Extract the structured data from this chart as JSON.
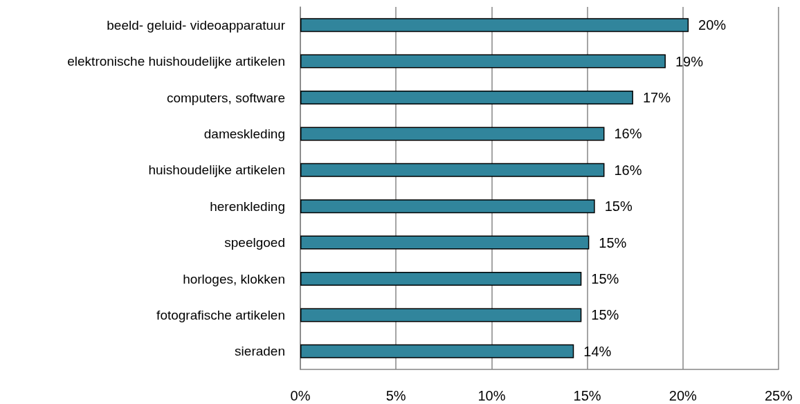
{
  "chart_data": {
    "type": "bar",
    "orientation": "horizontal",
    "categories": [
      "beeld- geluid- videoapparatuur",
      "elektronische huishoudelijke artikelen",
      "computers, software",
      "dameskleding",
      "huishoudelijke artikelen",
      "herenkleding",
      "speelgoed",
      "horloges, klokken",
      "fotografische artikelen",
      "sieraden"
    ],
    "values": [
      20.3,
      19.1,
      17.4,
      15.9,
      15.9,
      15.4,
      15.1,
      14.7,
      14.7,
      14.3
    ],
    "value_labels": [
      "20%",
      "19%",
      "17%",
      "16%",
      "16%",
      "15%",
      "15%",
      "15%",
      "15%",
      "14%"
    ],
    "color": "#31859c",
    "xlim": [
      0,
      25
    ],
    "xticks": [
      {
        "value": 0,
        "label": "0%"
      },
      {
        "value": 5,
        "label": "5%"
      },
      {
        "value": 10,
        "label": "10%"
      },
      {
        "value": 15,
        "label": "15%"
      },
      {
        "value": 20,
        "label": "20%"
      },
      {
        "value": 25,
        "label": "25%"
      }
    ],
    "grid": "x"
  }
}
